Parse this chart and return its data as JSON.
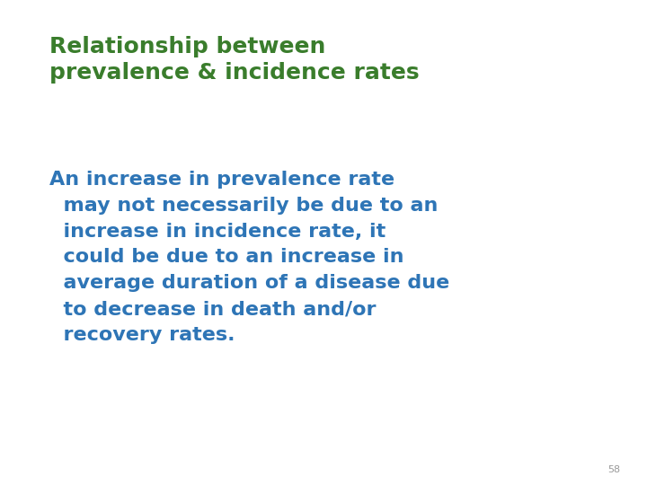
{
  "background_color": "#ffffff",
  "title_line1": "Relationship between",
  "title_line2": "prevalence & incidence rates",
  "title_color": "#3a7d2c",
  "title_fontsize": 18,
  "title_fontweight": "bold",
  "body_text": "An increase in prevalence rate\n  may not necessarily be due to an\n  increase in incidence rate, it\n  could be due to an increase in\n  average duration of a disease due\n  to decrease in death and/or\n  recovery rates.",
  "body_color": "#2e75b6",
  "body_fontsize": 16,
  "body_fontweight": "bold",
  "page_number": "58",
  "page_number_color": "#999999",
  "page_number_fontsize": 8
}
